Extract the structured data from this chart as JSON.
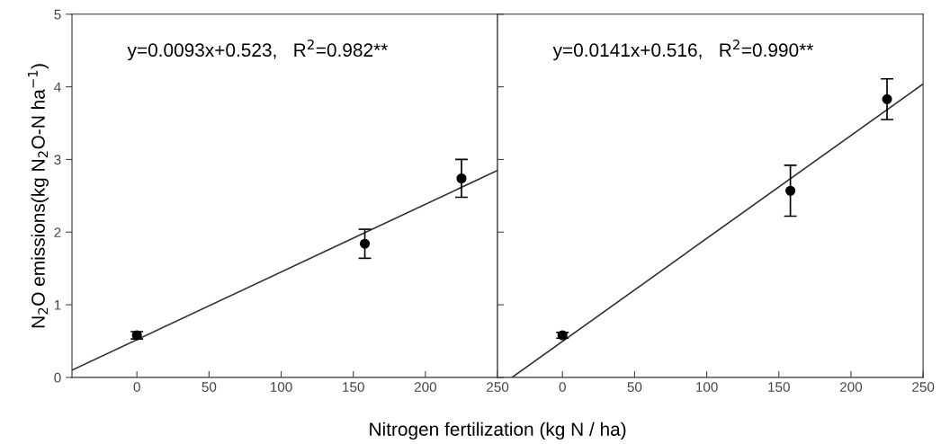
{
  "chart_data": [
    {
      "type": "scatter",
      "xlabel": "Nitrogen fertilization (kg N / ha)",
      "ylabel": "N$_{2}$O emissions(kg N$_{2}$O-N ha$^{−1}$)",
      "xlim": [
        -45,
        250
      ],
      "xticks": [
        0,
        50,
        100,
        150,
        200,
        250
      ],
      "ylim": [
        0,
        5
      ],
      "yticks": [
        0,
        1,
        2,
        3,
        4,
        5
      ],
      "grid": false,
      "marker": "circle",
      "annotations": [
        "y=0.0093x+0.523,   R$^{2}$=0.982**"
      ],
      "series": [
        {
          "color": "#000000",
          "x": [
            0,
            158,
            225
          ],
          "values": [
            0.58,
            1.84,
            2.74
          ],
          "errors": [
            0.05,
            0.2,
            0.26
          ]
        },
        {
          "type": "line",
          "color": "#333333",
          "x": [
            -45,
            250
          ],
          "values": [
            0.1,
            2.85
          ],
          "line_style": "solid",
          "marker": "none"
        }
      ]
    },
    {
      "type": "scatter",
      "tick_labels": "x",
      "xlim": [
        -45,
        250
      ],
      "xticks": [
        0,
        50,
        100,
        150,
        200,
        250
      ],
      "ylim": [
        0,
        5
      ],
      "yticks": [
        0,
        1,
        2,
        3,
        4,
        5
      ],
      "grid": false,
      "marker": "circle",
      "annotations": [
        "y=0.0141x+0.516,   R$^{2}$=0.990**"
      ],
      "series": [
        {
          "color": "#000000",
          "x": [
            0,
            158,
            225
          ],
          "values": [
            0.58,
            2.57,
            3.83
          ],
          "errors": [
            0.04,
            0.35,
            0.28
          ]
        },
        {
          "type": "line",
          "color": "#333333",
          "x": [
            -35,
            250
          ],
          "values": [
            0,
            4.04
          ],
          "line_style": "solid",
          "marker": "none"
        }
      ]
    }
  ]
}
